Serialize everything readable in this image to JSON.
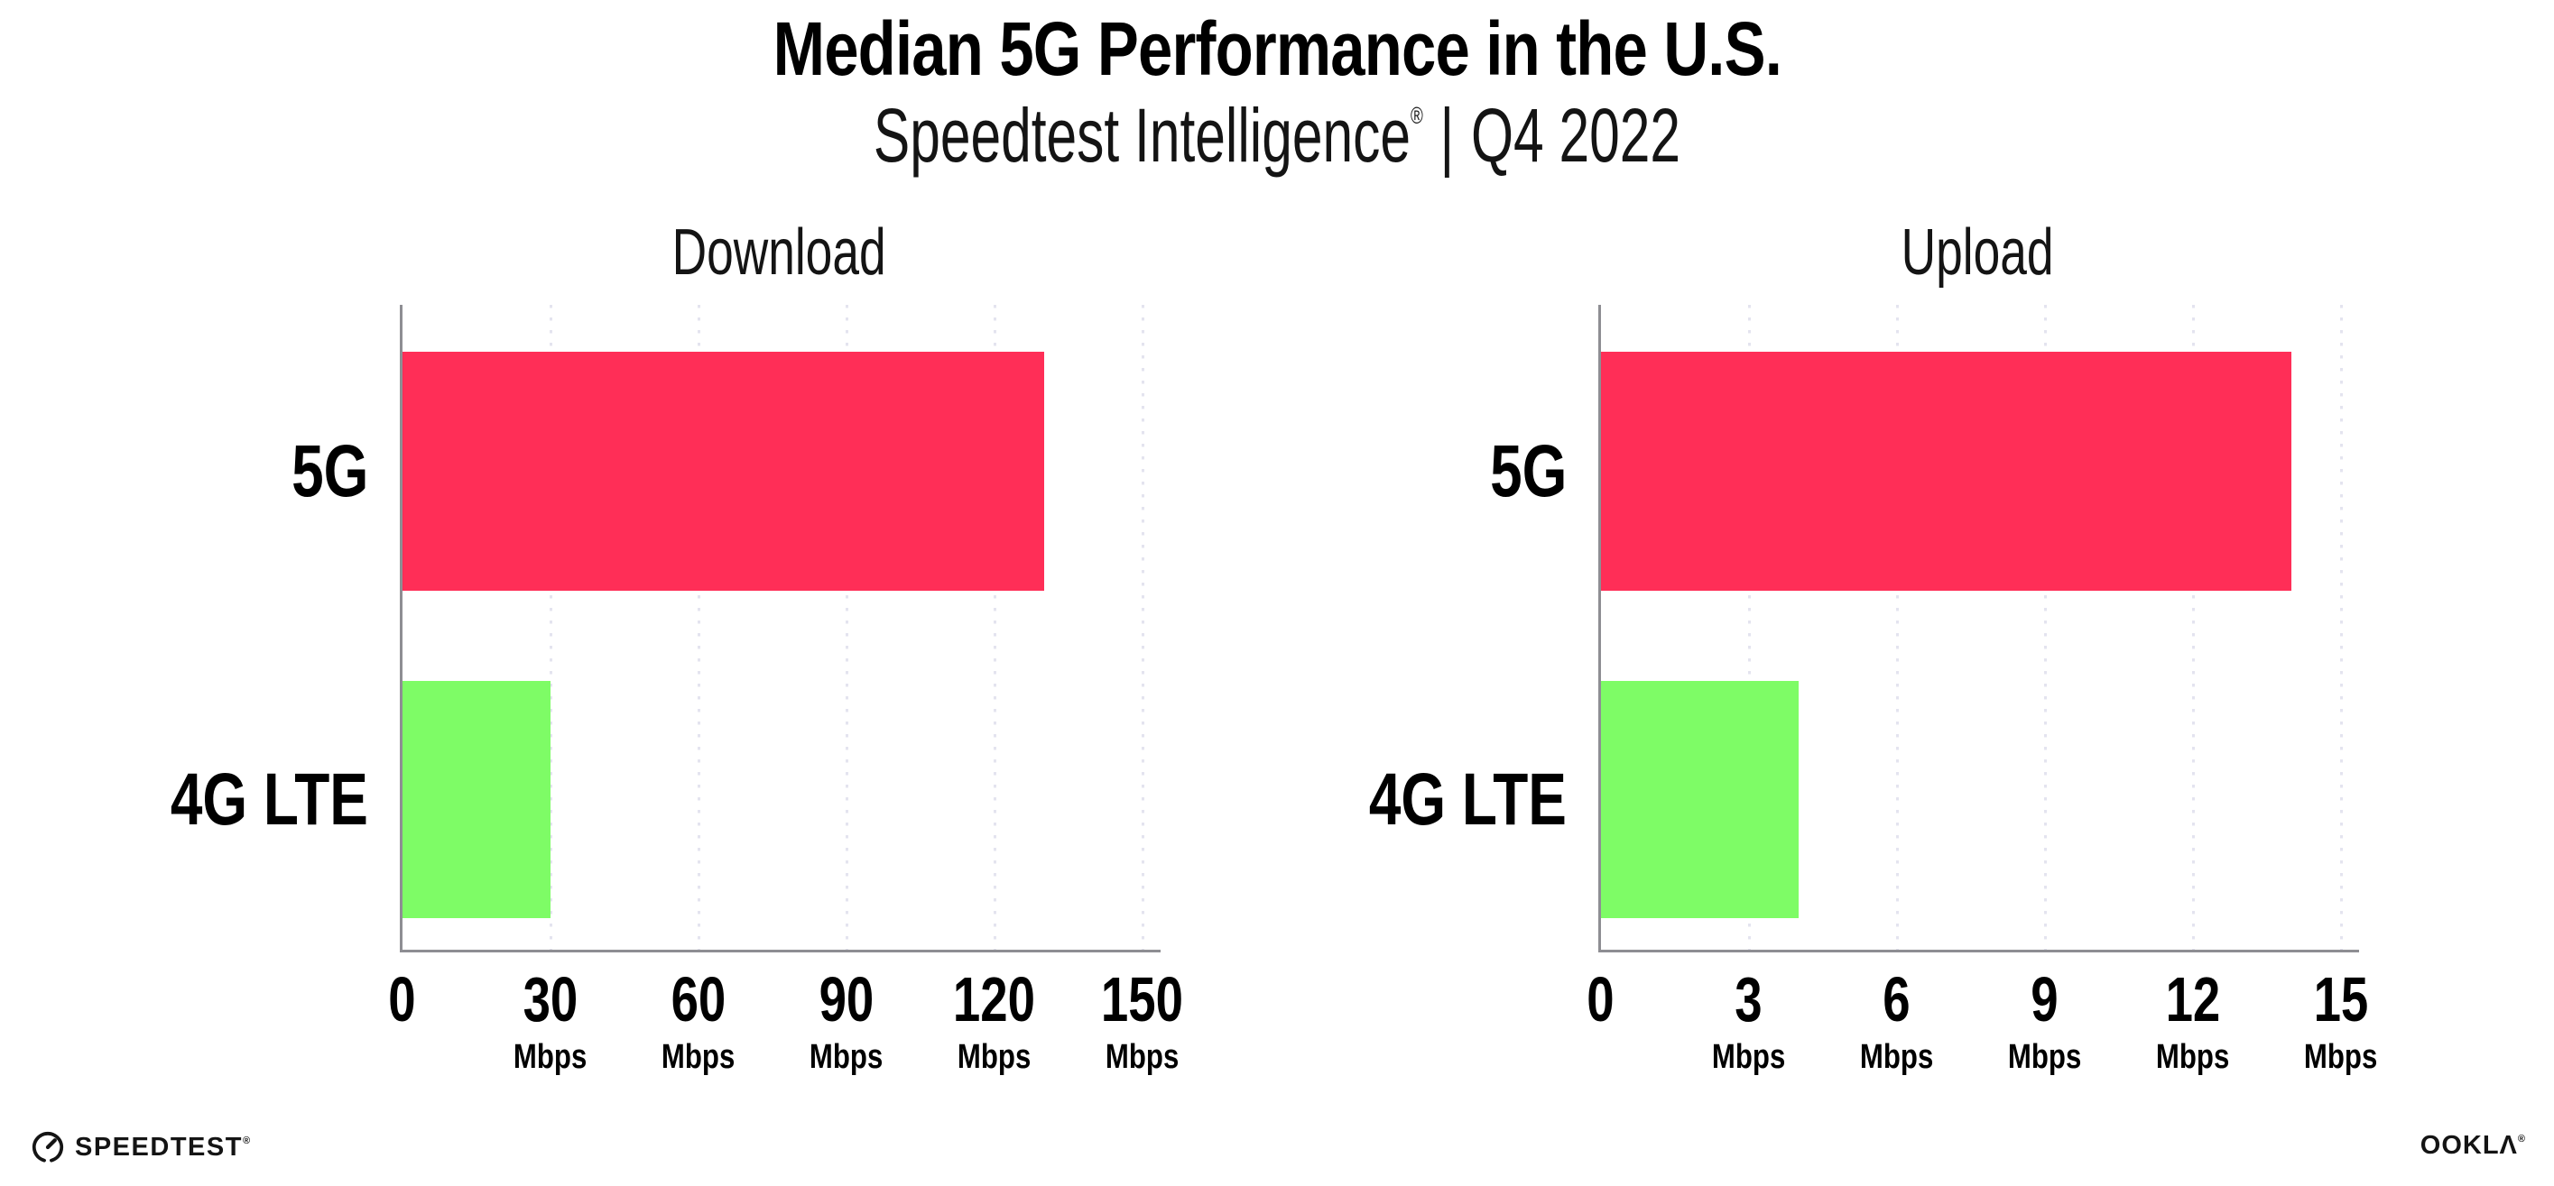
{
  "header": {
    "title": "Median 5G Performance in the U.S.",
    "subtitle_brand": "Speedtest Intelligence",
    "subtitle_reg": "®",
    "subtitle_divider": "|",
    "subtitle_period": "Q4 2022"
  },
  "chart_data": [
    {
      "type": "bar",
      "orientation": "horizontal",
      "title": "Download",
      "categories": [
        "5G",
        "4G LTE"
      ],
      "values": [
        130,
        30
      ],
      "unit": "Mbps",
      "xlim": [
        0,
        150
      ],
      "xticks": [
        0,
        30,
        60,
        90,
        120,
        150
      ],
      "tick_unit_label": "Mbps",
      "bar_colors": [
        "#ff2e57",
        "#7efc66"
      ],
      "grid": "dotted-vertical",
      "legend": "none"
    },
    {
      "type": "bar",
      "orientation": "horizontal",
      "title": "Upload",
      "categories": [
        "5G",
        "4G LTE"
      ],
      "values": [
        14,
        4
      ],
      "unit": "Mbps",
      "xlim": [
        0,
        15
      ],
      "xticks": [
        0,
        3,
        6,
        9,
        12,
        15
      ],
      "tick_unit_label": "Mbps",
      "bar_colors": [
        "#ff2e57",
        "#7efc66"
      ],
      "grid": "dotted-vertical",
      "legend": "none"
    }
  ],
  "colors": {
    "bar_5g": "#ff2e57",
    "bar_4g_lte": "#7efc66",
    "axis": "#8e8e93",
    "grid": "#e4e4ef",
    "text": "#000000"
  },
  "footer": {
    "speedtest_label": "SPEEDTEST",
    "speedtest_reg": "®",
    "speedtest_icon": "gauge-icon",
    "ookla_label": "OOKLΛ",
    "ookla_reg": "®"
  }
}
